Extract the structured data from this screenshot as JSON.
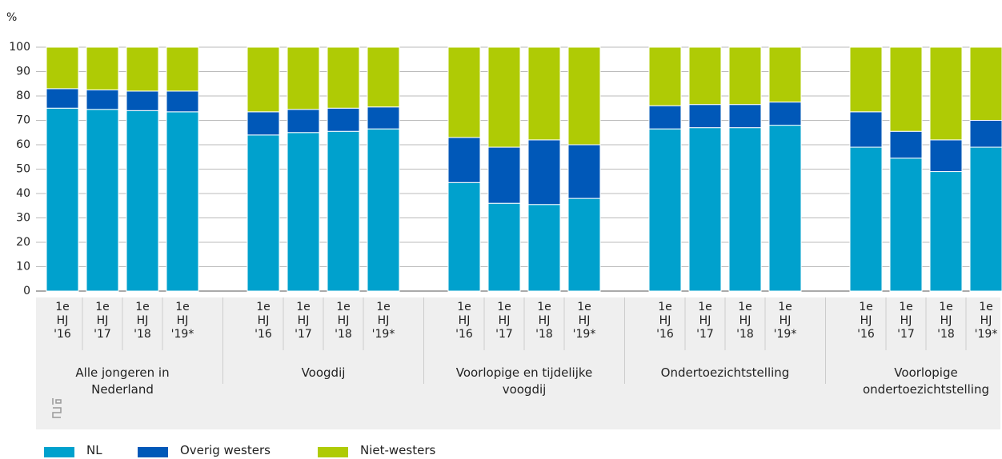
{
  "chart_data": {
    "type": "stacked-bar",
    "y_label": "%",
    "groups": [
      "Alle jongeren in Nederland",
      "Voogdij",
      "Voorlopige en tijdelijke voogdij",
      "Ondertoezichtstelling",
      "Voorlopige ondertoezichtstelling"
    ],
    "categories": [
      "1e HJ '16",
      "1e HJ '17",
      "1e HJ '18",
      "1e HJ '19*",
      "1e HJ '16",
      "1e HJ '17",
      "1e HJ '18",
      "1e HJ '19*",
      "1e HJ '16",
      "1e HJ '17",
      "1e HJ '18",
      "1e HJ '19*",
      "1e HJ '16",
      "1e HJ '17",
      "1e HJ '18",
      "1e HJ '19*",
      "1e HJ '16",
      "1e HJ '17",
      "1e HJ '18",
      "1e HJ '19*"
    ],
    "series": [
      {
        "name": "NL",
        "color": "#00a1cd",
        "values": [
          75,
          74.5,
          74,
          73.5,
          64,
          65,
          65.5,
          66.5,
          44.5,
          36,
          35.5,
          38,
          66.5,
          67,
          67,
          68,
          59,
          54.5,
          49,
          59
        ]
      },
      {
        "name": "Overig westers",
        "color": "#0058b8",
        "values": [
          8,
          8,
          8,
          8.5,
          9.5,
          9.5,
          9.5,
          9,
          18.5,
          23,
          26.5,
          22,
          9.5,
          9.5,
          9.5,
          9.5,
          14.5,
          11,
          13,
          11
        ]
      },
      {
        "name": "Niet-westers",
        "color": "#afcb05",
        "values": [
          17,
          17.5,
          18,
          18,
          26.5,
          25.5,
          25,
          24.5,
          37,
          41,
          38,
          40,
          24,
          23.5,
          23.5,
          22.5,
          26.5,
          34.5,
          38,
          30
        ]
      }
    ],
    "ylim": [
      0,
      100
    ],
    "yticks": [
      0,
      10,
      20,
      30,
      40,
      50,
      60,
      70,
      80,
      90,
      100
    ],
    "grid": true
  }
}
